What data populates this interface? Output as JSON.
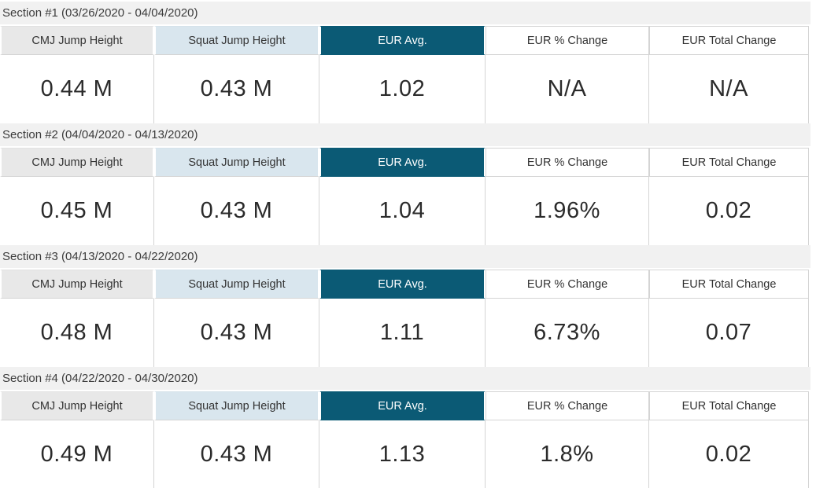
{
  "colors": {
    "section_bar_bg": "#f1f1f1",
    "header_gray_bg": "#e8e8e8",
    "header_blue_bg": "#d9e6ee",
    "header_teal_bg": "#0b5a75",
    "header_teal_text": "#ffffff",
    "border": "#d4d4d4",
    "value_text": "#2b2b2b"
  },
  "columns": [
    {
      "label": "CMJ Jump Height",
      "style": "gray"
    },
    {
      "label": "Squat Jump Height",
      "style": "blue"
    },
    {
      "label": "EUR Avg.",
      "style": "teal",
      "selected": true
    },
    {
      "label": "EUR % Change",
      "style": "white"
    },
    {
      "label": "EUR Total Change",
      "style": "white"
    }
  ],
  "sections": [
    {
      "title": "Section #1 (03/26/2020 - 04/04/2020)",
      "values": [
        "0.44 M",
        "0.43 M",
        "1.02",
        "N/A",
        "N/A"
      ]
    },
    {
      "title": "Section #2 (04/04/2020 - 04/13/2020)",
      "values": [
        "0.45 M",
        "0.43 M",
        "1.04",
        "1.96%",
        "0.02"
      ]
    },
    {
      "title": "Section #3 (04/13/2020 - 04/22/2020)",
      "values": [
        "0.48 M",
        "0.43 M",
        "1.11",
        "6.73%",
        "0.07"
      ]
    },
    {
      "title": "Section #4 (04/22/2020 - 04/30/2020)",
      "values": [
        "0.49 M",
        "0.43 M",
        "1.13",
        "1.8%",
        "0.02"
      ]
    }
  ]
}
